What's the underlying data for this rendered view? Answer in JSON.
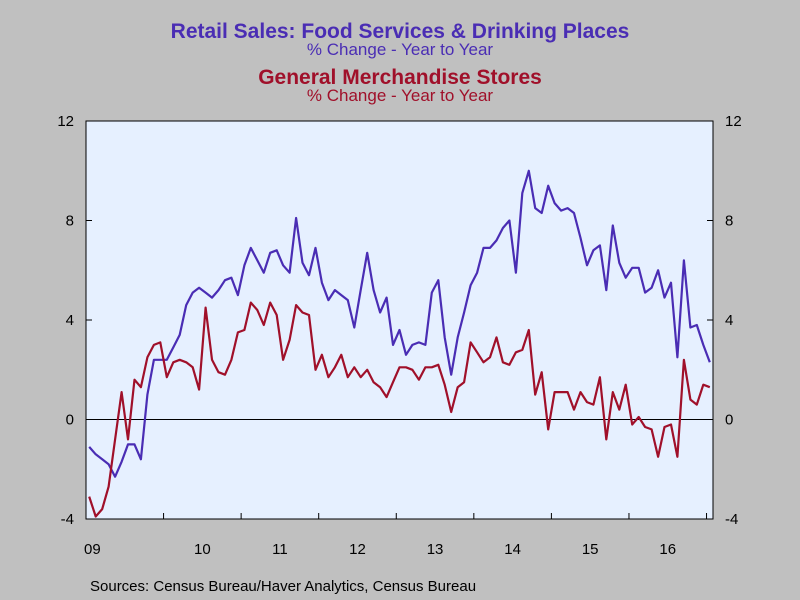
{
  "titles": {
    "series1_title": "Retail Sales: Food Services & Drinking Places",
    "series1_subtitle": "% Change - Year to Year",
    "series2_title": "General Merchandise Stores",
    "series2_subtitle": "% Change - Year to Year"
  },
  "colors": {
    "series1": "#4a2db4",
    "series2": "#a0102a",
    "plot_background": "#e6f0ff",
    "page_background": "#c0c0c0"
  },
  "source": "Sources:  Census Bureau/Haver Analytics, Census Bureau",
  "chart_data": {
    "type": "line",
    "ylim": [
      -4,
      12
    ],
    "yticks": [
      -4,
      0,
      4,
      8,
      12
    ],
    "y_tick_labels": [
      "-4",
      "0",
      "4",
      "8",
      "12"
    ],
    "right_axis_mirrors_left": true,
    "x_start": "2009-01",
    "frequency": "monthly",
    "x_tick_labels": [
      "09",
      "10",
      "11",
      "12",
      "13",
      "14",
      "15",
      "16"
    ],
    "zero_line": true,
    "grid": false,
    "series": [
      {
        "name": "Retail Sales: Food Services & Drinking Places",
        "color": "#4a2db4",
        "values": [
          -1.1,
          -1.4,
          -1.6,
          -1.8,
          -2.3,
          -1.7,
          -1.0,
          -1.0,
          -1.6,
          1.0,
          2.4,
          2.4,
          2.4,
          2.9,
          3.4,
          4.6,
          5.1,
          5.3,
          5.1,
          4.9,
          5.2,
          5.6,
          5.7,
          5.0,
          6.2,
          6.9,
          6.4,
          5.9,
          6.7,
          6.8,
          6.2,
          5.9,
          8.1,
          6.3,
          5.8,
          6.9,
          5.5,
          4.8,
          5.2,
          5.0,
          4.8,
          3.7,
          5.2,
          6.7,
          5.2,
          4.3,
          4.9,
          3.0,
          3.6,
          2.6,
          3.0,
          3.1,
          3.0,
          5.1,
          5.6,
          3.3,
          1.8,
          3.3,
          4.3,
          5.4,
          5.9,
          6.9,
          6.9,
          7.2,
          7.7,
          8.0,
          5.9,
          9.1,
          10.0,
          8.5,
          8.3,
          9.4,
          8.7,
          8.4,
          8.5,
          8.3,
          7.3,
          6.2,
          6.8,
          7.0,
          5.2,
          7.8,
          6.3,
          5.7,
          6.1,
          6.1,
          5.1,
          5.3,
          6.0,
          4.9,
          5.5,
          2.5,
          6.4,
          3.7,
          3.8,
          3.0,
          2.3
        ]
      },
      {
        "name": "General Merchandise Stores",
        "color": "#a0102a",
        "values": [
          -3.1,
          -3.9,
          -3.6,
          -2.7,
          -0.8,
          1.1,
          -0.8,
          1.6,
          1.3,
          2.5,
          3.0,
          3.1,
          1.7,
          2.3,
          2.4,
          2.3,
          2.1,
          1.2,
          4.5,
          2.4,
          1.9,
          1.8,
          2.4,
          3.5,
          3.6,
          4.7,
          4.4,
          3.8,
          4.7,
          4.2,
          2.4,
          3.2,
          4.6,
          4.3,
          4.2,
          2.0,
          2.6,
          1.7,
          2.1,
          2.6,
          1.7,
          2.1,
          1.7,
          2.0,
          1.5,
          1.3,
          0.9,
          1.5,
          2.1,
          2.1,
          2.0,
          1.6,
          2.1,
          2.1,
          2.2,
          1.4,
          0.3,
          1.3,
          1.5,
          3.1,
          2.7,
          2.3,
          2.5,
          3.3,
          2.3,
          2.2,
          2.7,
          2.8,
          3.6,
          1.0,
          1.9,
          -0.4,
          1.1,
          1.1,
          1.1,
          0.4,
          1.1,
          0.7,
          0.6,
          1.7,
          -0.8,
          1.1,
          0.4,
          1.4,
          -0.2,
          0.1,
          -0.3,
          -0.4,
          -1.5,
          -0.3,
          -0.2,
          -1.5,
          2.4,
          0.8,
          0.6,
          1.4,
          1.3
        ]
      }
    ]
  }
}
